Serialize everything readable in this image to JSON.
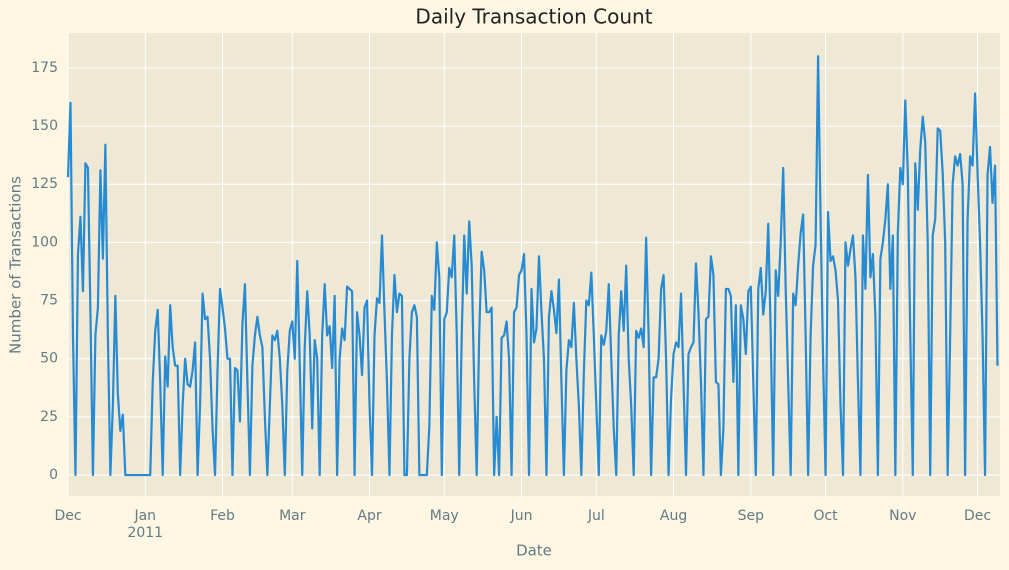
{
  "chart_data": {
    "type": "line",
    "title": "Daily Transaction Count",
    "x_label": "Date",
    "y_label": "Number of Transactions",
    "color": "#268bd2",
    "grid": true,
    "xlim": [
      0,
      374
    ],
    "ylim": [
      -9,
      190
    ],
    "xticks": [
      {
        "value": 0,
        "label": "Dec"
      },
      {
        "value": 31,
        "label": "Jan\n2011"
      },
      {
        "value": 62,
        "label": "Feb"
      },
      {
        "value": 90,
        "label": "Mar"
      },
      {
        "value": 121,
        "label": "Apr"
      },
      {
        "value": 151,
        "label": "May"
      },
      {
        "value": 182,
        "label": "Jun"
      },
      {
        "value": 212,
        "label": "Jul"
      },
      {
        "value": 243,
        "label": "Aug"
      },
      {
        "value": 274,
        "label": "Sep"
      },
      {
        "value": 304,
        "label": "Oct"
      },
      {
        "value": 335,
        "label": "Nov"
      },
      {
        "value": 365,
        "label": "Dec"
      }
    ],
    "yticks": [
      0,
      25,
      50,
      75,
      100,
      125,
      150,
      175
    ],
    "x": [
      0,
      1,
      2,
      3,
      4,
      5,
      6,
      7,
      8,
      9,
      10,
      11,
      12,
      13,
      14,
      15,
      16,
      17,
      18,
      19,
      20,
      21,
      22,
      23,
      24,
      25,
      26,
      27,
      28,
      29,
      30,
      31,
      32,
      33,
      34,
      35,
      36,
      37,
      38,
      39,
      40,
      41,
      42,
      43,
      44,
      45,
      46,
      47,
      48,
      49,
      50,
      51,
      52,
      53,
      54,
      55,
      56,
      57,
      58,
      59,
      60,
      61,
      62,
      63,
      64,
      65,
      66,
      67,
      68,
      69,
      70,
      71,
      72,
      73,
      74,
      75,
      76,
      77,
      78,
      79,
      80,
      81,
      82,
      83,
      84,
      85,
      86,
      87,
      88,
      89,
      90,
      91,
      92,
      93,
      94,
      95,
      96,
      97,
      98,
      99,
      100,
      101,
      102,
      103,
      104,
      105,
      106,
      107,
      108,
      109,
      110,
      111,
      112,
      113,
      114,
      115,
      116,
      117,
      118,
      119,
      120,
      121,
      122,
      123,
      124,
      125,
      126,
      127,
      128,
      129,
      130,
      131,
      132,
      133,
      134,
      135,
      136,
      137,
      138,
      139,
      140,
      141,
      142,
      143,
      144,
      145,
      146,
      147,
      148,
      149,
      150,
      151,
      152,
      153,
      154,
      155,
      156,
      157,
      158,
      159,
      160,
      161,
      162,
      163,
      164,
      165,
      166,
      167,
      168,
      169,
      170,
      171,
      172,
      173,
      174,
      175,
      176,
      177,
      178,
      179,
      180,
      181,
      182,
      183,
      184,
      185,
      186,
      187,
      188,
      189,
      190,
      191,
      192,
      193,
      194,
      195,
      196,
      197,
      198,
      199,
      200,
      201,
      202,
      203,
      204,
      205,
      206,
      207,
      208,
      209,
      210,
      211,
      212,
      213,
      214,
      215,
      216,
      217,
      218,
      219,
      220,
      221,
      222,
      223,
      224,
      225,
      226,
      227,
      228,
      229,
      230,
      231,
      232,
      233,
      234,
      235,
      236,
      237,
      238,
      239,
      240,
      241,
      242,
      243,
      244,
      245,
      246,
      247,
      248,
      249,
      250,
      251,
      252,
      253,
      254,
      255,
      256,
      257,
      258,
      259,
      260,
      261,
      262,
      263,
      264,
      265,
      266,
      267,
      268,
      269,
      270,
      271,
      272,
      273,
      274,
      275,
      276,
      277,
      278,
      279,
      280,
      281,
      282,
      283,
      284,
      285,
      286,
      287,
      288,
      289,
      290,
      291,
      292,
      293,
      294,
      295,
      296,
      297,
      298,
      299,
      300,
      301,
      302,
      303,
      304,
      305,
      306,
      307,
      308,
      309,
      310,
      311,
      312,
      313,
      314,
      315,
      316,
      317,
      318,
      319,
      320,
      321,
      322,
      323,
      324,
      325,
      326,
      327,
      328,
      329,
      330,
      331,
      332,
      333,
      334,
      335,
      336,
      337,
      338,
      339,
      340,
      341,
      342,
      343,
      344,
      345,
      346,
      347,
      348,
      349,
      350,
      351,
      352,
      353,
      354,
      355,
      356,
      357,
      358,
      359,
      360,
      361,
      362,
      363,
      364,
      365,
      366,
      367,
      368,
      369,
      370,
      371,
      372,
      373
    ],
    "values": [
      128,
      160,
      60,
      0,
      95,
      111,
      79,
      134,
      132,
      70,
      0,
      60,
      72,
      131,
      93,
      142,
      60,
      0,
      30,
      77,
      35,
      19,
      26,
      0,
      0,
      0,
      0,
      0,
      0,
      0,
      0,
      0,
      0,
      0,
      40,
      62,
      71,
      40,
      0,
      51,
      38,
      73,
      55,
      47,
      47,
      0,
      30,
      50,
      39,
      38,
      45,
      57,
      0,
      30,
      78,
      67,
      68,
      50,
      20,
      0,
      45,
      80,
      72,
      63,
      50,
      50,
      0,
      46,
      45,
      23,
      65,
      82,
      40,
      0,
      47,
      60,
      68,
      60,
      55,
      25,
      0,
      30,
      60,
      58,
      62,
      50,
      30,
      0,
      45,
      62,
      66,
      50,
      92,
      48,
      0,
      55,
      79,
      60,
      20,
      58,
      50,
      0,
      60,
      82,
      60,
      64,
      46,
      77,
      0,
      50,
      63,
      58,
      81,
      80,
      79,
      0,
      70,
      60,
      43,
      72,
      75,
      30,
      0,
      60,
      76,
      74,
      103,
      70,
      40,
      0,
      60,
      86,
      70,
      78,
      77,
      0,
      0,
      50,
      70,
      73,
      68,
      0,
      0,
      0,
      0,
      21,
      77,
      71,
      100,
      85,
      0,
      67,
      70,
      89,
      85,
      103,
      60,
      0,
      60,
      103,
      78,
      109,
      90,
      40,
      0,
      60,
      96,
      88,
      70,
      70,
      72,
      0,
      25,
      0,
      59,
      60,
      66,
      50,
      0,
      70,
      72,
      86,
      88,
      95,
      60,
      0,
      80,
      57,
      63,
      94,
      70,
      50,
      0,
      68,
      79,
      71,
      61,
      84,
      40,
      0,
      45,
      58,
      55,
      74,
      50,
      30,
      0,
      44,
      75,
      73,
      87,
      60,
      30,
      0,
      60,
      56,
      62,
      82,
      50,
      20,
      0,
      60,
      79,
      62,
      90,
      50,
      30,
      0,
      62,
      59,
      63,
      55,
      102,
      60,
      0,
      42,
      42,
      50,
      80,
      86,
      50,
      0,
      33,
      52,
      57,
      55,
      78,
      40,
      0,
      52,
      55,
      57,
      91,
      70,
      40,
      0,
      67,
      68,
      94,
      86,
      40,
      39,
      0,
      20,
      80,
      80,
      77,
      40,
      73,
      0,
      73,
      67,
      52,
      79,
      81,
      40,
      0,
      80,
      89,
      69,
      79,
      108,
      60,
      0,
      88,
      77,
      100,
      132,
      80,
      40,
      0,
      78,
      73,
      90,
      104,
      112,
      60,
      0,
      60,
      90,
      99,
      180,
      110,
      50,
      0,
      113,
      92,
      94,
      88,
      75,
      30,
      0,
      100,
      90,
      97,
      103,
      85,
      40,
      0,
      103,
      80,
      129,
      85,
      95,
      68,
      0,
      93,
      100,
      110,
      125,
      80,
      103,
      0,
      104,
      132,
      125,
      161,
      130,
      60,
      0,
      134,
      114,
      140,
      154,
      143,
      100,
      0,
      103,
      110,
      149,
      148,
      130,
      100,
      0,
      60,
      125,
      137,
      133,
      138,
      125,
      0,
      110,
      137,
      133,
      164,
      130,
      100,
      60,
      0,
      129,
      141,
      117,
      133,
      47
    ]
  }
}
